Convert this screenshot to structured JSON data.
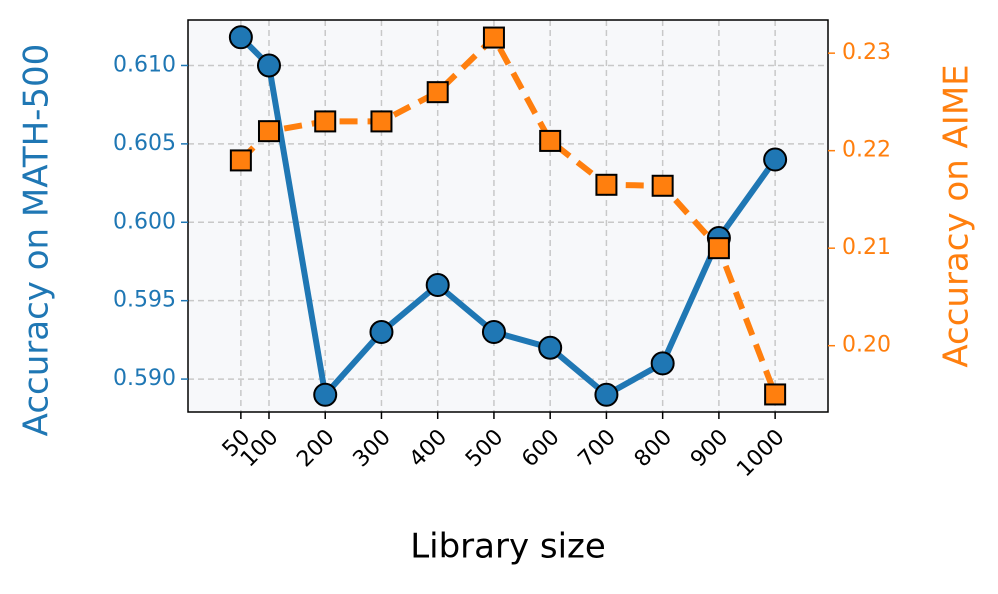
{
  "chart_data": {
    "type": "line",
    "x_label": "Library size",
    "y_label": "Accuracy on MATH-500",
    "y2_label": "Accuracy on AIME",
    "x": [
      50,
      100,
      200,
      300,
      400,
      500,
      600,
      700,
      800,
      900,
      1000
    ],
    "series": [
      {
        "name": "MATH-500",
        "color": "#1f77b4",
        "marker": "circle",
        "linestyle": "solid",
        "values": [
          0.6118,
          0.61,
          0.589,
          0.593,
          0.596,
          0.593,
          0.592,
          0.589,
          0.591,
          0.599,
          0.604
        ]
      },
      {
        "name": "AIME",
        "color": "#ff7f0e",
        "marker": "square",
        "linestyle": "dashed",
        "axis": "y2",
        "values": [
          0.219,
          0.222,
          0.223,
          0.223,
          0.226,
          0.2316,
          0.221,
          0.2165,
          0.2164,
          0.21,
          0.195
        ]
      }
    ],
    "xlim": [
      -44,
      1094
    ],
    "xticks": [
      50,
      100,
      200,
      300,
      400,
      500,
      600,
      700,
      800,
      900,
      1000
    ],
    "ylim": [
      0.5879,
      0.6129
    ],
    "yticks": [
      {
        "value": 0.59,
        "label": "0.590"
      },
      0.595,
      {
        "value": 0.6,
        "label": "0.600"
      },
      0.605,
      {
        "value": 0.61,
        "label": "0.610"
      }
    ],
    "y2lim": [
      0.1932,
      0.2334
    ],
    "y2ticks": [
      {
        "value": 0.2,
        "label": "0.20"
      },
      0.21,
      0.22,
      0.23
    ],
    "grid": true
  }
}
